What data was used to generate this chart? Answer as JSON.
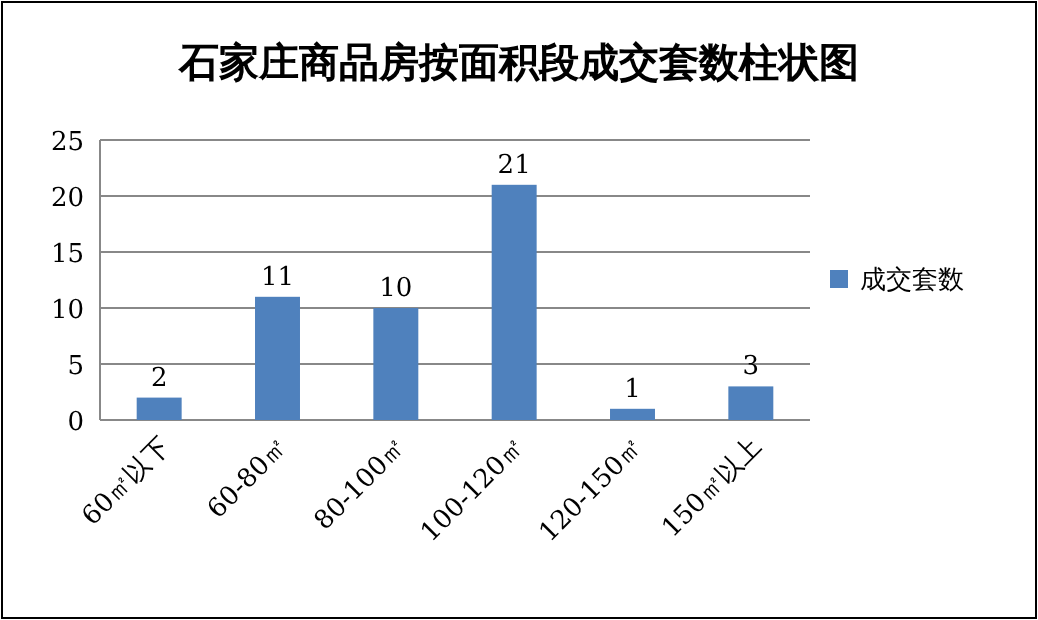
{
  "chart_data": {
    "type": "bar",
    "title": "石家庄商品房按面积段成交套数柱状图",
    "categories": [
      "60㎡以下",
      "60-80㎡",
      "80-100㎡",
      "100-120㎡",
      "120-150㎡",
      "150㎡以上"
    ],
    "series": [
      {
        "name": "成交套数",
        "color": "#4f81bd",
        "values": [
          2,
          11,
          10,
          21,
          1,
          3
        ]
      }
    ],
    "ylim": [
      0,
      25
    ],
    "yticks": [
      0,
      5,
      10,
      15,
      20,
      25
    ],
    "grid": "y",
    "legend": "right",
    "data_labels": true
  }
}
